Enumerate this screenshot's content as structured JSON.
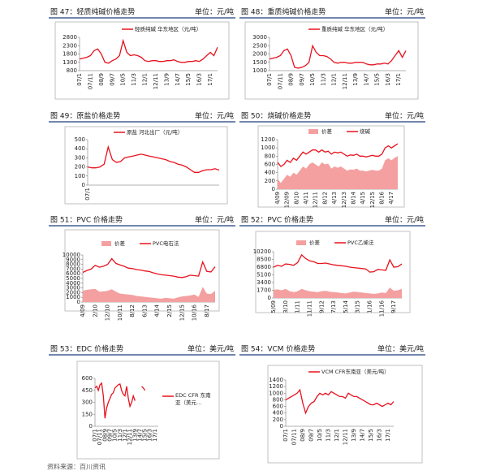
{
  "figures": [
    {
      "caption": "图 47：轻质纯碱价格走势",
      "unit": "单位：元/吨",
      "chart": {
        "type": "line",
        "ylim": [
          800,
          2800
        ],
        "yticks": [
          800,
          1300,
          1800,
          2300,
          2800
        ],
        "categories": [
          "07/1",
          null,
          null,
          "07/11",
          null,
          null,
          "08/9",
          null,
          null,
          "09/7",
          null,
          null,
          "10/5",
          null,
          null,
          "11/3",
          null,
          null,
          "12/1",
          null,
          null,
          "12/11",
          null,
          null,
          "13/9",
          null,
          null,
          "14/7",
          null,
          null,
          "15/5",
          null,
          null,
          "16/3",
          null,
          null,
          "17/1",
          null,
          null
        ],
        "series": [
          {
            "name": "轻质纯碱 华东地区（元/吨）",
            "color": "#e8121e",
            "style": "line",
            "values": [
              1500,
              1550,
              1600,
              1700,
              2000,
              2100,
              1800,
              1300,
              1250,
              1400,
              1500,
              1700,
              2600,
              1900,
              1700,
              1750,
              1700,
              1600,
              1400,
              1350,
              1400,
              1400,
              1350,
              1350,
              1400,
              1400,
              1450,
              1350,
              1300,
              1300,
              1350,
              1350,
              1400,
              1350,
              1500,
              1700,
              1900,
              1700,
              2200
            ]
          }
        ]
      }
    },
    {
      "caption": "图 48：重质纯碱价格走势",
      "unit": "单位：元/吨",
      "chart": {
        "type": "line",
        "ylim": [
          1000,
          3000
        ],
        "yticks": [
          1000,
          1500,
          2000,
          2500,
          3000
        ],
        "categories": [
          "07/1",
          null,
          null,
          "07/11",
          null,
          null,
          "08/9",
          null,
          null,
          "09/7",
          null,
          null,
          "10/5",
          null,
          null,
          "11/3",
          null,
          null,
          "12/1",
          null,
          null,
          "12/11",
          null,
          null,
          "13/9",
          null,
          null,
          "14/7",
          null,
          null,
          "15/5",
          null,
          null,
          "16/3",
          null,
          null,
          "17/1",
          null,
          null
        ],
        "series": [
          {
            "name": "重质纯碱 华东地区（元/吨）",
            "color": "#e8121e",
            "style": "line",
            "values": [
              1700,
              1750,
              1800,
              1900,
              2200,
              2300,
              1900,
              1200,
              1150,
              1200,
              1300,
              1500,
              2500,
              2100,
              1900,
              1900,
              1850,
              1700,
              1500,
              1450,
              1500,
              1500,
              1450,
              1450,
              1500,
              1500,
              1500,
              1400,
              1350,
              1350,
              1400,
              1400,
              1450,
              1400,
              1600,
              1900,
              2200,
              1800,
              2200
            ]
          }
        ]
      }
    },
    {
      "caption": "图 49：原盐价格走势",
      "unit": "单位：元/吨",
      "chart": {
        "type": "line",
        "ylim": [
          0,
          500
        ],
        "yticks": [
          0,
          100,
          200,
          300,
          400,
          500
        ],
        "categories": [
          "07/1",
          null,
          null,
          null,
          null,
          null,
          null,
          null,
          null,
          null,
          null,
          null,
          null,
          null,
          null,
          null,
          null,
          null,
          null,
          null,
          null,
          null,
          null,
          null,
          null,
          null,
          null,
          null,
          null,
          null,
          null,
          null,
          null
        ],
        "series": [
          {
            "name": "原盐 河北出厂（元/吨）",
            "color": "#e8121e",
            "style": "line",
            "values": [
              200,
              190,
              190,
              200,
              230,
              420,
              280,
              250,
              260,
              300,
              310,
              320,
              330,
              340,
              330,
              320,
              310,
              300,
              290,
              280,
              260,
              250,
              230,
              220,
              200,
              170,
              140,
              140,
              160,
              170,
              170,
              180,
              165
            ]
          }
        ]
      }
    },
    {
      "caption": "图 50：烧碱价格走势",
      "unit": "单位：元/吨",
      "chart": {
        "type": "line",
        "ylim": [
          0,
          1200
        ],
        "yticks": [
          0,
          200,
          400,
          600,
          800,
          1000,
          1200
        ],
        "categories": [
          "4/09",
          null,
          null,
          "12/09",
          null,
          null,
          "8/10",
          null,
          null,
          "4/11",
          null,
          null,
          "12/11",
          null,
          null,
          "8/12",
          null,
          null,
          "4/13",
          null,
          null,
          "12/13",
          null,
          null,
          "8/14",
          null,
          null,
          "4/15",
          null,
          null,
          "12/15",
          null,
          null,
          "8/16",
          null,
          null,
          "4/17",
          null,
          null
        ],
        "series": [
          {
            "name": "价差",
            "color": "#f4a0a0",
            "style": "area",
            "values": [
              250,
              150,
              250,
              350,
              300,
              400,
              350,
              450,
              550,
              500,
              600,
              650,
              600,
              550,
              650,
              600,
              620,
              500,
              550,
              520,
              550,
              500,
              450,
              480,
              470,
              500,
              450,
              450,
              430,
              450,
              470,
              450,
              450,
              500,
              700,
              750,
              700,
              760,
              800
            ]
          },
          {
            "name": "烧碱",
            "color": "#e8121e",
            "style": "line",
            "values": [
              650,
              550,
              600,
              700,
              650,
              750,
              700,
              800,
              900,
              850,
              900,
              950,
              950,
              900,
              950,
              900,
              920,
              850,
              900,
              880,
              900,
              850,
              800,
              830,
              820,
              850,
              800,
              800,
              780,
              800,
              820,
              800,
              800,
              850,
              1000,
              1050,
              1000,
              1050,
              1100
            ]
          }
        ]
      }
    },
    {
      "caption": "图 51：PVC 价格走势",
      "unit": "单位：元/吨",
      "chart": {
        "type": "line",
        "ylim": [
          0,
          10000
        ],
        "yticks": [
          0,
          1000,
          2000,
          3000,
          4000,
          5000,
          6000,
          7000,
          8000,
          9000,
          10000
        ],
        "categories": [
          "4/09",
          null,
          null,
          "2/10",
          null,
          null,
          "12/10",
          null,
          null,
          "10/11",
          null,
          null,
          "8/12",
          null,
          null,
          "6/13",
          null,
          null,
          "4/14",
          null,
          null,
          "2/15",
          null,
          null,
          "12/15",
          null,
          null,
          "10/16",
          null,
          null,
          "8/17",
          null,
          null
        ],
        "series": [
          {
            "name": "价差",
            "color": "#f4a0a0",
            "style": "area",
            "values": [
              2400,
              2600,
              2700,
              2800,
              2200,
              2300,
              2400,
              2700,
              2200,
              1800,
              1700,
              1600,
              1500,
              1300,
              1200,
              1100,
              1000,
              900,
              800,
              700,
              900,
              800,
              700,
              1000,
              1200,
              1300,
              1400,
              1600,
              1100,
              3200,
              1800,
              1700,
              2400
            ]
          },
          {
            "name": "PVC电石法",
            "color": "#e8121e",
            "style": "line",
            "values": [
              6300,
              6700,
              7000,
              7800,
              7400,
              7600,
              8000,
              9200,
              8200,
              7900,
              7600,
              7200,
              7100,
              6900,
              6800,
              6600,
              6500,
              6200,
              6000,
              5800,
              5700,
              5600,
              5500,
              5300,
              5200,
              5400,
              5700,
              5600,
              5500,
              8500,
              6500,
              6400,
              7500
            ]
          }
        ]
      }
    },
    {
      "caption": "图 52：PVC 价格走势",
      "unit": "单位：元/吨",
      "chart": {
        "type": "line",
        "ylim": [
          0,
          10200
        ],
        "yticks": [
          0,
          1700,
          3400,
          5100,
          6800,
          8500,
          10200
        ],
        "categories": [
          "5/09",
          null,
          null,
          "3/10",
          null,
          null,
          "1/11",
          null,
          null,
          "11/11",
          null,
          null,
          "9/12",
          null,
          null,
          "7/13",
          null,
          null,
          "5/14",
          null,
          null,
          "3/15",
          null,
          null,
          "1/16",
          null,
          null,
          "11/16",
          null,
          null,
          "9/17",
          null,
          null
        ],
        "series": [
          {
            "name": "价差",
            "color": "#f4a0a0",
            "style": "area",
            "values": [
              1800,
              1900,
              1700,
              2000,
              1500,
              1300,
              1500,
              2000,
              1700,
              1500,
              1400,
              1300,
              1500,
              1600,
              1400,
              1300,
              1200,
              1100,
              1000,
              1200,
              1400,
              1300,
              1200,
              1100,
              1000,
              900,
              1000,
              1200,
              1100,
              2300,
              1600,
              1700,
              2000
            ]
          },
          {
            "name": "PVC乙烯法",
            "color": "#e8121e",
            "style": "line",
            "values": [
              6800,
              7200,
              7000,
              7500,
              7400,
              7200,
              7800,
              9500,
              8700,
              8200,
              8000,
              7600,
              7600,
              7700,
              7500,
              7300,
              7200,
              7100,
              7000,
              6800,
              6700,
              6600,
              6500,
              6400,
              5700,
              5800,
              6300,
              6200,
              6100,
              8400,
              6800,
              6900,
              7500
            ]
          }
        ]
      }
    },
    {
      "caption": "图 53：EDC 价格走势",
      "unit": "单位：美元/吨",
      "chart": {
        "type": "line",
        "ylim": [
          0,
          600
        ],
        "yticks": [
          0,
          150,
          300,
          450,
          600
        ],
        "legend": "right",
        "categories": [
          "07/1",
          null,
          null,
          "07/11",
          null,
          null,
          "08/9",
          null,
          null,
          "09/7",
          null,
          null,
          "10/5",
          null,
          null,
          "11/3",
          null,
          null,
          "12/1",
          null,
          null,
          "12/11",
          null,
          null,
          "13/9",
          null,
          null,
          "14/7",
          null,
          null,
          "15/5",
          null,
          null,
          "16/3",
          null,
          null,
          "17/1",
          null,
          null
        ],
        "series": [
          {
            "name": "EDC CFR 东南亚（美元…",
            "color": "#e8121e",
            "style": "line",
            "values": [
              480,
              500,
              450,
              520,
              540,
              380,
              100,
              230,
              300,
              350,
              400,
              420,
              480,
              500,
              520,
              530,
              450,
              400,
              380,
              500,
              350,
              250,
              300,
              380,
              320,
              null,
              null,
              null,
              500,
              480,
              450,
              null,
              null,
              null,
              null,
              null,
              null,
              null,
              null
            ]
          }
        ]
      }
    },
    {
      "caption": "图 54：VCM 价格走势",
      "unit": "单位：美元/吨",
      "chart": {
        "type": "line",
        "ylim": [
          0,
          1400
        ],
        "yticks": [
          0,
          200,
          400,
          600,
          800,
          1000,
          1200,
          1400
        ],
        "categories": [
          "07/1",
          null,
          null,
          "07/11",
          null,
          null,
          "08/9",
          null,
          null,
          "09/7",
          null,
          null,
          "10/5",
          null,
          null,
          "11/3",
          null,
          null,
          "12/1",
          null,
          null,
          "12/11",
          null,
          null,
          "13/9",
          null,
          null,
          "14/7",
          null,
          null,
          "15/5",
          null,
          null,
          "16/3",
          null,
          null,
          "17/1",
          null,
          null
        ],
        "series": [
          {
            "name": "VCM CFR东南亚（美元/吨）",
            "color": "#e8121e",
            "style": "line",
            "values": [
              800,
              850,
              900,
              950,
              1000,
              1100,
              700,
              400,
              600,
              700,
              750,
              900,
              1000,
              950,
              1000,
              950,
              1050,
              1000,
              950,
              900,
              900,
              850,
              1000,
              950,
              900,
              900,
              850,
              800,
              750,
              700,
              650,
              650,
              700,
              650,
              600,
              650,
              700,
              650,
              750
            ]
          }
        ]
      }
    }
  ],
  "source": "资料来源：百川资讯"
}
